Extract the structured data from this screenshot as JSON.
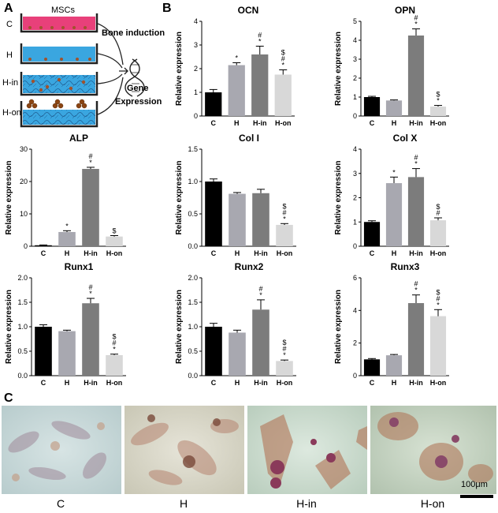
{
  "panels": {
    "a": "A",
    "b": "B",
    "c": "C"
  },
  "schematic": {
    "top_label": "MSCs",
    "groups": [
      "C",
      "H",
      "H-in",
      "H-on"
    ],
    "bone_induction": "Bone induction",
    "gene_line1": "Gene",
    "gene_line2": "Expression",
    "colors": {
      "c_medium": "#e8407a",
      "other_medium": "#3aa6e0",
      "cell": "#a0522d",
      "dish": "#222222"
    }
  },
  "bar_colors": [
    "#000000",
    "#a8a8b0",
    "#7c7c7c",
    "#d8d8d8"
  ],
  "chart_data": [
    {
      "type": "bar",
      "title": "OCN",
      "ylabel": "Relative expression",
      "categories": [
        "C",
        "H",
        "H-in",
        "H-on"
      ],
      "values": [
        1.0,
        2.15,
        2.6,
        1.75
      ],
      "errors": [
        0.12,
        0.1,
        0.35,
        0.2
      ],
      "ylim": [
        0,
        4
      ],
      "yticks": [
        0,
        1,
        2,
        3,
        4
      ],
      "annotations": [
        [],
        [
          "*"
        ],
        [
          "#",
          "*"
        ],
        [
          "$",
          "#",
          "*"
        ]
      ]
    },
    {
      "type": "bar",
      "title": "OPN",
      "ylabel": "Relative expression",
      "categories": [
        "C",
        "H",
        "H-in",
        "H-on"
      ],
      "values": [
        1.0,
        0.82,
        4.25,
        0.5
      ],
      "errors": [
        0.04,
        0.03,
        0.35,
        0.06
      ],
      "ylim": [
        0,
        5
      ],
      "yticks": [
        0,
        1,
        2,
        3,
        4,
        5
      ],
      "annotations": [
        [],
        [],
        [
          "#",
          "*"
        ],
        [
          "$",
          "*"
        ]
      ]
    },
    {
      "type": "bar",
      "title": "ALP",
      "ylabel": "Relative expression",
      "categories": [
        "C",
        "H",
        "H-in",
        "H-on"
      ],
      "values": [
        0.3,
        4.4,
        23.9,
        3.0
      ],
      "errors": [
        0.1,
        0.4,
        0.5,
        0.3
      ],
      "ylim": [
        0,
        30
      ],
      "yticks": [
        0,
        10,
        20,
        30
      ],
      "annotations": [
        [],
        [
          "*"
        ],
        [
          "#",
          "*"
        ],
        [
          "$"
        ]
      ]
    },
    {
      "type": "bar",
      "title": "Col I",
      "ylabel": "Relative expression",
      "categories": [
        "C",
        "H",
        "H-in",
        "H-on"
      ],
      "values": [
        1.0,
        0.81,
        0.82,
        0.33
      ],
      "errors": [
        0.04,
        0.02,
        0.06,
        0.02
      ],
      "ylim": [
        0,
        1.5
      ],
      "yticks": [
        0.0,
        0.5,
        1.0,
        1.5
      ],
      "annotations": [
        [],
        [],
        [],
        [
          "$",
          "#",
          "*"
        ]
      ]
    },
    {
      "type": "bar",
      "title": "Col X",
      "ylabel": "Relative expression",
      "categories": [
        "C",
        "H",
        "H-in",
        "H-on"
      ],
      "values": [
        1.0,
        2.6,
        2.85,
        1.07
      ],
      "errors": [
        0.05,
        0.25,
        0.35,
        0.1
      ],
      "ylim": [
        0,
        4
      ],
      "yticks": [
        0,
        1,
        2,
        3,
        4
      ],
      "annotations": [
        [],
        [
          "*"
        ],
        [
          "#",
          "*"
        ],
        [
          "$",
          "#"
        ]
      ]
    },
    {
      "type": "bar",
      "title": "Runx1",
      "ylabel": "Relative expression",
      "categories": [
        "C",
        "H",
        "H-in",
        "H-on"
      ],
      "values": [
        1.0,
        0.91,
        1.48,
        0.42
      ],
      "errors": [
        0.04,
        0.02,
        0.1,
        0.02
      ],
      "ylim": [
        0,
        2.0
      ],
      "yticks": [
        0.0,
        0.5,
        1.0,
        1.5,
        2.0
      ],
      "annotations": [
        [],
        [],
        [
          "#",
          "*"
        ],
        [
          "$",
          "#",
          "*"
        ]
      ]
    },
    {
      "type": "bar",
      "title": "Runx2",
      "ylabel": "Relative expression",
      "categories": [
        "C",
        "H",
        "H-in",
        "H-on"
      ],
      "values": [
        1.0,
        0.88,
        1.35,
        0.3
      ],
      "errors": [
        0.07,
        0.05,
        0.2,
        0.02
      ],
      "ylim": [
        0,
        2.0
      ],
      "yticks": [
        0.0,
        0.5,
        1.0,
        1.5,
        2.0
      ],
      "annotations": [
        [],
        [],
        [
          "#",
          "*"
        ],
        [
          "$",
          "#",
          "*"
        ]
      ]
    },
    {
      "type": "bar",
      "title": "Runx3",
      "ylabel": "Relative expression",
      "categories": [
        "C",
        "H",
        "H-in",
        "H-on"
      ],
      "values": [
        1.0,
        1.25,
        4.45,
        3.65
      ],
      "errors": [
        0.05,
        0.05,
        0.5,
        0.4
      ],
      "ylim": [
        0,
        6
      ],
      "yticks": [
        0,
        2,
        4,
        6
      ],
      "annotations": [
        [],
        [],
        [
          "#",
          "*"
        ],
        [
          "$",
          "#",
          "*"
        ]
      ]
    }
  ],
  "micrographs": {
    "captions": [
      "C",
      "H",
      "H-in",
      "H-on"
    ],
    "scale_bar": "100μm"
  }
}
